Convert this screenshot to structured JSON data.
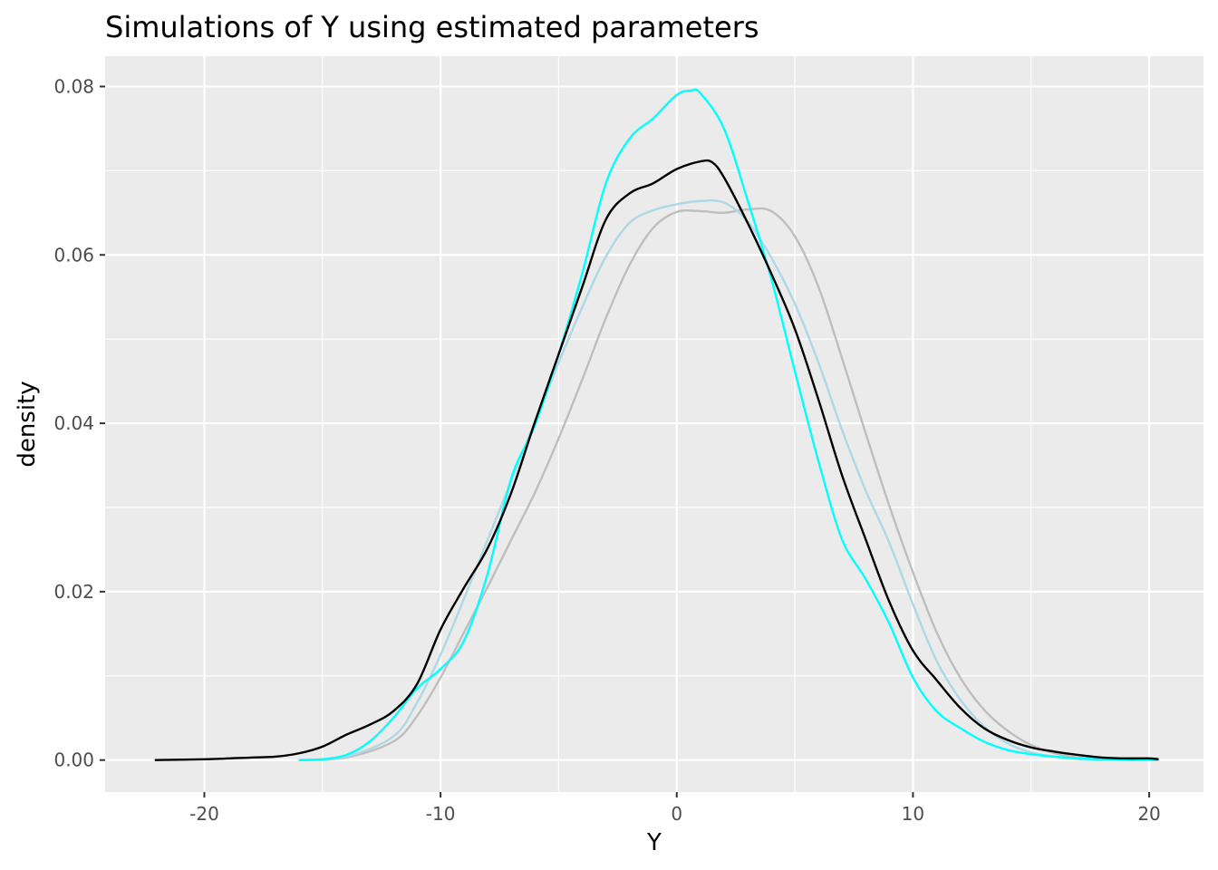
{
  "chart_data": {
    "type": "line",
    "title": "Simulations of Y using estimated parameters",
    "xlabel": "Y",
    "ylabel": "density",
    "xlim": [
      -24.2,
      22.3
    ],
    "ylim": [
      -0.0038,
      0.0836
    ],
    "x_ticks": [
      -20,
      -10,
      0,
      10,
      20
    ],
    "x_tick_labels": [
      "-20",
      "-10",
      "0",
      "10",
      "20"
    ],
    "y_ticks": [
      0,
      0.02,
      0.04,
      0.06,
      0.08
    ],
    "y_tick_labels": [
      "0.00",
      "0.02",
      "0.04",
      "0.06",
      "0.08"
    ],
    "grid": true,
    "legend": "none",
    "background": "#ebebeb",
    "series": [
      {
        "color": "#bebebe",
        "points": [
          [
            -16,
            0.0
          ],
          [
            -14,
            0.0003
          ],
          [
            -12,
            0.0022
          ],
          [
            -11,
            0.0052
          ],
          [
            -10,
            0.0098
          ],
          [
            -9,
            0.0152
          ],
          [
            -8,
            0.0206
          ],
          [
            -7,
            0.0262
          ],
          [
            -6,
            0.0318
          ],
          [
            -5,
            0.0382
          ],
          [
            -4,
            0.0452
          ],
          [
            -3,
            0.0525
          ],
          [
            -2,
            0.0588
          ],
          [
            -1,
            0.0632
          ],
          [
            0,
            0.0651
          ],
          [
            1,
            0.0652
          ],
          [
            2,
            0.065
          ],
          [
            3,
            0.0654
          ],
          [
            4,
            0.0652
          ],
          [
            5,
            0.0622
          ],
          [
            6,
            0.0562
          ],
          [
            7,
            0.0477
          ],
          [
            8,
            0.0388
          ],
          [
            9,
            0.0302
          ],
          [
            10,
            0.0223
          ],
          [
            11,
            0.0152
          ],
          [
            12,
            0.0098
          ],
          [
            13,
            0.006
          ],
          [
            14,
            0.0035
          ],
          [
            15,
            0.0018
          ],
          [
            16,
            0.0008
          ],
          [
            17,
            0.0003
          ],
          [
            18,
            0.0001
          ],
          [
            19,
            0.0
          ]
        ]
      },
      {
        "color": "#add8e6",
        "points": [
          [
            -16,
            0.0
          ],
          [
            -14,
            0.0004
          ],
          [
            -12,
            0.0028
          ],
          [
            -11,
            0.0068
          ],
          [
            -10,
            0.0125
          ],
          [
            -9,
            0.0192
          ],
          [
            -8,
            0.0262
          ],
          [
            -7,
            0.0332
          ],
          [
            -6,
            0.0402
          ],
          [
            -5,
            0.0472
          ],
          [
            -4,
            0.0538
          ],
          [
            -3,
            0.0598
          ],
          [
            -2,
            0.0638
          ],
          [
            -1,
            0.0653
          ],
          [
            0,
            0.066
          ],
          [
            1,
            0.0664
          ],
          [
            2,
            0.0662
          ],
          [
            3,
            0.064
          ],
          [
            4,
            0.0597
          ],
          [
            5,
            0.0542
          ],
          [
            6,
            0.0472
          ],
          [
            7,
            0.0392
          ],
          [
            8,
            0.032
          ],
          [
            9,
            0.0258
          ],
          [
            10,
            0.0185
          ],
          [
            11,
            0.0118
          ],
          [
            12,
            0.0072
          ],
          [
            13,
            0.004
          ],
          [
            14,
            0.002
          ],
          [
            15,
            0.0009
          ],
          [
            16,
            0.0004
          ],
          [
            17,
            0.0001
          ],
          [
            18,
            0.0
          ]
        ]
      },
      {
        "color": "#00ffff",
        "points": [
          [
            -16,
            0.0
          ],
          [
            -15,
            0.0001
          ],
          [
            -14,
            0.0006
          ],
          [
            -13,
            0.0022
          ],
          [
            -12,
            0.005
          ],
          [
            -11,
            0.0085
          ],
          [
            -10,
            0.0108
          ],
          [
            -9,
            0.0142
          ],
          [
            -8,
            0.0222
          ],
          [
            -7,
            0.0335
          ],
          [
            -6,
            0.0398
          ],
          [
            -5,
            0.0482
          ],
          [
            -4,
            0.0578
          ],
          [
            -3,
            0.0685
          ],
          [
            -2,
            0.0738
          ],
          [
            -1,
            0.0762
          ],
          [
            0,
            0.079
          ],
          [
            0.6,
            0.0795
          ],
          [
            1,
            0.0792
          ],
          [
            2,
            0.075
          ],
          [
            3,
            0.0665
          ],
          [
            4,
            0.0572
          ],
          [
            5,
            0.0462
          ],
          [
            6,
            0.0355
          ],
          [
            7,
            0.0262
          ],
          [
            8,
            0.0215
          ],
          [
            9,
            0.0162
          ],
          [
            10,
            0.0098
          ],
          [
            11,
            0.0058
          ],
          [
            12,
            0.0038
          ],
          [
            13,
            0.0022
          ],
          [
            14,
            0.0012
          ],
          [
            15,
            0.0007
          ],
          [
            16,
            0.0004
          ],
          [
            17,
            0.0002
          ],
          [
            18,
            0.0001
          ],
          [
            19,
            0.0
          ],
          [
            20.4,
            0.0
          ]
        ]
      },
      {
        "color": "#000000",
        "points": [
          [
            -22.1,
            0.0
          ],
          [
            -20,
            0.0001
          ],
          [
            -18,
            0.0003
          ],
          [
            -17,
            0.0004
          ],
          [
            -16,
            0.0008
          ],
          [
            -15,
            0.0016
          ],
          [
            -14,
            0.003
          ],
          [
            -13,
            0.0042
          ],
          [
            -12,
            0.0058
          ],
          [
            -11,
            0.009
          ],
          [
            -10,
            0.0155
          ],
          [
            -9,
            0.0205
          ],
          [
            -8,
            0.0252
          ],
          [
            -7,
            0.0318
          ],
          [
            -6,
            0.0402
          ],
          [
            -5,
            0.0482
          ],
          [
            -4,
            0.0562
          ],
          [
            -3,
            0.0642
          ],
          [
            -2,
            0.0673
          ],
          [
            -1,
            0.0685
          ],
          [
            0,
            0.0702
          ],
          [
            1,
            0.0711
          ],
          [
            1.5,
            0.071
          ],
          [
            2,
            0.0692
          ],
          [
            3,
            0.0638
          ],
          [
            4,
            0.0578
          ],
          [
            5,
            0.0512
          ],
          [
            6,
            0.0428
          ],
          [
            7,
            0.0338
          ],
          [
            8,
            0.0262
          ],
          [
            9,
            0.0188
          ],
          [
            10,
            0.013
          ],
          [
            11,
            0.0095
          ],
          [
            12,
            0.0062
          ],
          [
            13,
            0.0038
          ],
          [
            14,
            0.0024
          ],
          [
            15,
            0.0015
          ],
          [
            16,
            0.001
          ],
          [
            17,
            0.0006
          ],
          [
            18,
            0.0003
          ],
          [
            19,
            0.0002
          ],
          [
            20,
            0.0002
          ],
          [
            20.4,
            0.0001
          ]
        ]
      }
    ]
  }
}
